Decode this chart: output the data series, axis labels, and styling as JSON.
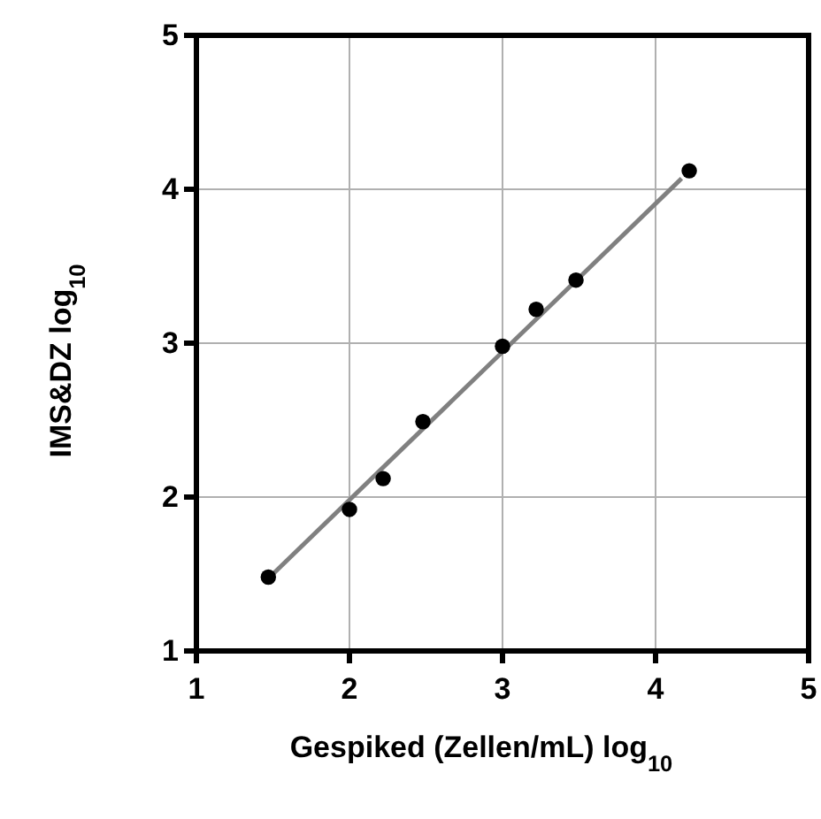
{
  "chart_data": {
    "type": "scatter",
    "xlabel": "Gespiked (Zellen/mL) log$_{10}$",
    "ylabel": "IMS&DZ log$_{10}$",
    "xlim": [
      1,
      5
    ],
    "xticks": [
      1,
      2,
      3,
      4,
      5
    ],
    "ylim": [
      1,
      5
    ],
    "yticks": [
      1,
      2,
      3,
      4,
      5
    ],
    "grid": true,
    "series": [
      {
        "marker": "circle",
        "color": "#000000",
        "x": [
          1.47,
          2.0,
          2.22,
          2.48,
          3.0,
          3.22,
          3.48,
          4.22
        ],
        "values": [
          1.48,
          1.92,
          2.12,
          2.49,
          2.98,
          3.22,
          3.41,
          4.12
        ]
      },
      {
        "type": "line",
        "color": "#808080",
        "line_style": "solid",
        "x": [
          1.5,
          4.17
        ],
        "values": [
          1.5,
          4.07
        ]
      }
    ]
  }
}
